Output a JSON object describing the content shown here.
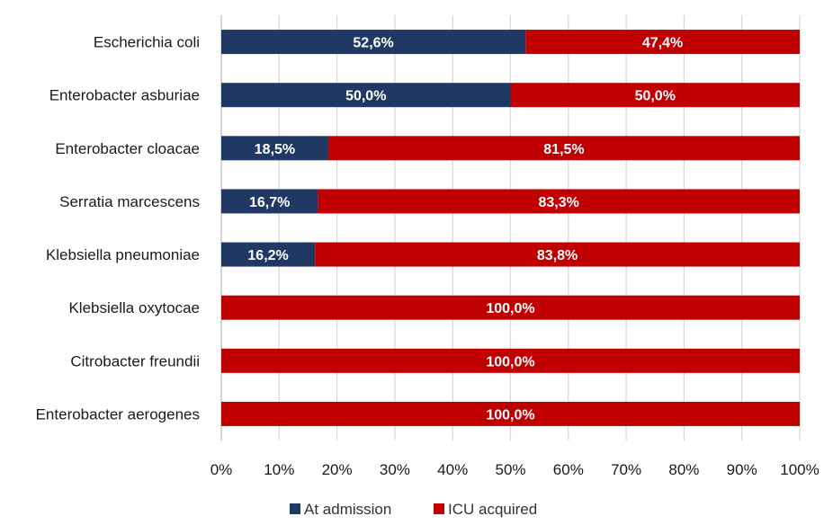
{
  "chart_data": {
    "type": "bar",
    "orientation": "horizontal",
    "stacked": true,
    "title": "",
    "xlabel": "",
    "ylabel": "",
    "categories": [
      "Escherichia coli",
      "Enterobacter asburiae",
      "Enterobacter cloacae",
      "Serratia marcescens",
      "Klebsiella pneumoniae",
      "Klebsiella oxytocae",
      "Citrobacter freundii",
      "Enterobacter aerogenes"
    ],
    "series": [
      {
        "name": "At admission",
        "color": "#203864",
        "values": [
          52.6,
          50.0,
          18.5,
          16.7,
          16.2,
          0,
          0,
          0
        ],
        "labels": [
          "52,6%",
          "50,0%",
          "18,5%",
          "16,7%",
          "16,2%",
          "",
          "",
          ""
        ]
      },
      {
        "name": "ICU acquired",
        "color": "#c00000",
        "values": [
          47.4,
          50.0,
          81.5,
          83.3,
          83.8,
          100.0,
          100.0,
          100.0
        ],
        "labels": [
          "47,4%",
          "50,0%",
          "81,5%",
          "83,3%",
          "83,8%",
          "100,0%",
          "100,0%",
          "100,0%"
        ]
      }
    ],
    "xlim": [
      0,
      100
    ],
    "xticks": [
      0,
      10,
      20,
      30,
      40,
      50,
      60,
      70,
      80,
      90,
      100
    ],
    "xtick_labels": [
      "0%",
      "10%",
      "20%",
      "30%",
      "40%",
      "50%",
      "60%",
      "70%",
      "80%",
      "90%",
      "100%"
    ],
    "grid": true,
    "legend": "bottom"
  }
}
